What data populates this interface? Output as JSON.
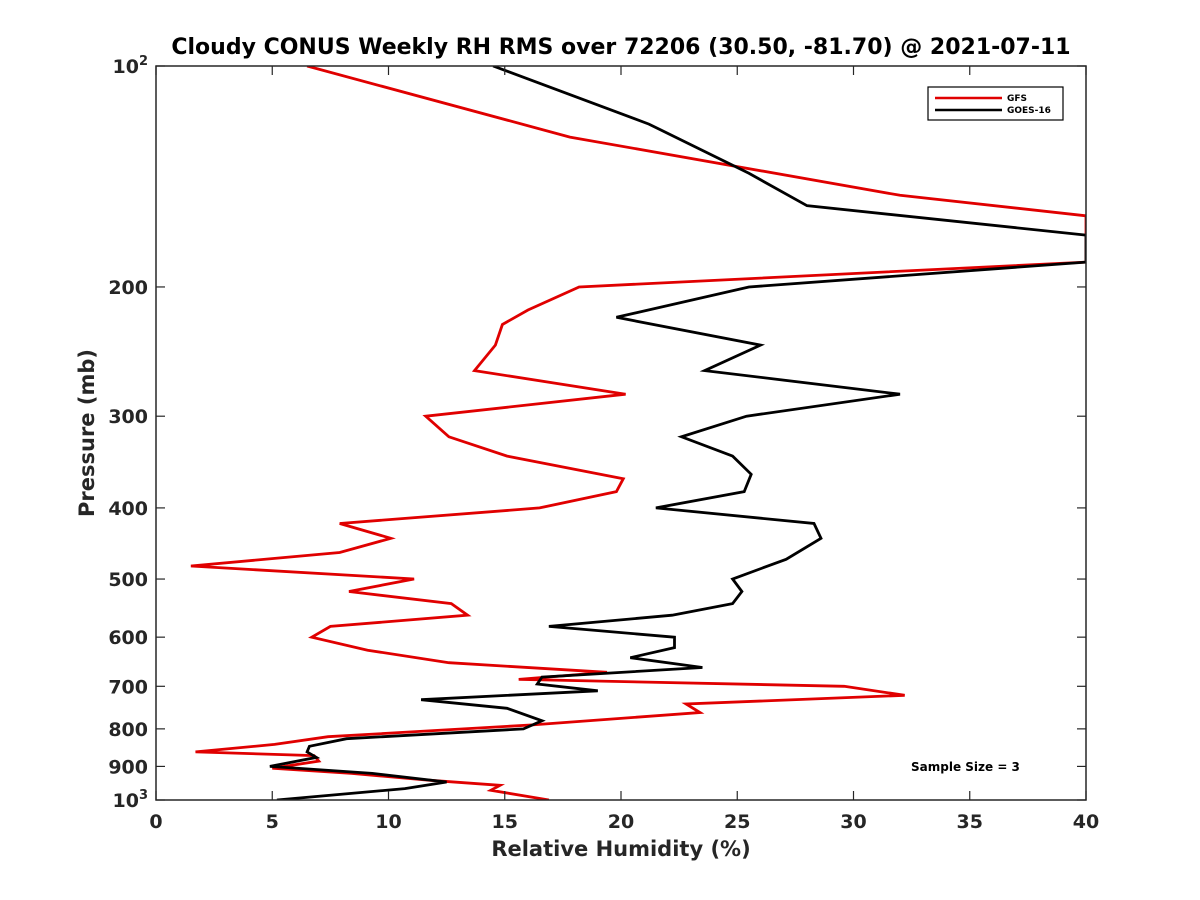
{
  "chart_data": {
    "type": "line",
    "title": "Cloudy CONUS Weekly RH RMS over 72206 (30.50, -81.70) @ 2021-07-11",
    "xlabel": "Relative Humidity (%)",
    "ylabel": "Pressure (mb)",
    "xlim": [
      0,
      40
    ],
    "ylim": [
      100,
      1000
    ],
    "yscale": "log",
    "y_reversed": true,
    "x_ticks": [
      0,
      5,
      10,
      15,
      20,
      25,
      30,
      35,
      40
    ],
    "x_tick_labels": [
      "0",
      "5",
      "10",
      "15",
      "20",
      "25",
      "30",
      "35",
      "40"
    ],
    "y_ticks": [
      {
        "value": 100,
        "base": "10",
        "exp": "2"
      },
      {
        "value": 200,
        "label": "200"
      },
      {
        "value": 300,
        "label": "300"
      },
      {
        "value": 400,
        "label": "400"
      },
      {
        "value": 500,
        "label": "500"
      },
      {
        "value": 600,
        "label": "600"
      },
      {
        "value": 700,
        "label": "700"
      },
      {
        "value": 800,
        "label": "800"
      },
      {
        "value": 900,
        "label": "900"
      },
      {
        "value": 1000,
        "base": "10",
        "exp": "3"
      }
    ],
    "legend_position": "top-right",
    "annotation": "Sample Size = 3",
    "series": [
      {
        "name": "GFS",
        "color": "#e00000",
        "points": [
          [
            6.5,
            100
          ],
          [
            17.8,
            125
          ],
          [
            32,
            150
          ],
          [
            40,
            160
          ],
          [
            40,
            185
          ],
          [
            18.2,
            200
          ],
          [
            16,
            215
          ],
          [
            14.9,
            225
          ],
          [
            14.6,
            240
          ],
          [
            13.7,
            260
          ],
          [
            20.2,
            280
          ],
          [
            11.6,
            300
          ],
          [
            12.6,
            320
          ],
          [
            15.1,
            340
          ],
          [
            20.1,
            365
          ],
          [
            19.8,
            380
          ],
          [
            16.5,
            400
          ],
          [
            7.9,
            420
          ],
          [
            10.1,
            440
          ],
          [
            7.9,
            460
          ],
          [
            1.5,
            480
          ],
          [
            11.1,
            500
          ],
          [
            8.3,
            520
          ],
          [
            12.7,
            540
          ],
          [
            13.4,
            560
          ],
          [
            7.5,
            580
          ],
          [
            6.7,
            600
          ],
          [
            9.1,
            625
          ],
          [
            12.6,
            650
          ],
          [
            19.4,
            670
          ],
          [
            15.6,
            685
          ],
          [
            29.6,
            700
          ],
          [
            32.2,
            720
          ],
          [
            22.8,
            740
          ],
          [
            23.4,
            760
          ],
          [
            16.2,
            790
          ],
          [
            7.4,
            820
          ],
          [
            5.1,
            840
          ],
          [
            1.7,
            860
          ],
          [
            6.8,
            870
          ],
          [
            7.0,
            885
          ],
          [
            5.0,
            905
          ],
          [
            8.4,
            920
          ],
          [
            11.8,
            940
          ],
          [
            14.8,
            955
          ],
          [
            14.4,
            970
          ],
          [
            16.9,
            1000
          ]
        ]
      },
      {
        "name": "GOES-16",
        "color": "#000000",
        "points": [
          [
            14.5,
            100
          ],
          [
            21.2,
            120
          ],
          [
            25.5,
            140
          ],
          [
            28,
            155
          ],
          [
            40,
            170
          ],
          [
            40,
            185
          ],
          [
            25.5,
            200
          ],
          [
            19.8,
            220
          ],
          [
            26,
            240
          ],
          [
            23.6,
            260
          ],
          [
            32,
            280
          ],
          [
            25.4,
            300
          ],
          [
            22.6,
            320
          ],
          [
            24.8,
            340
          ],
          [
            25.6,
            360
          ],
          [
            25.3,
            380
          ],
          [
            21.5,
            400
          ],
          [
            28.3,
            420
          ],
          [
            28.6,
            440
          ],
          [
            27.1,
            470
          ],
          [
            24.8,
            500
          ],
          [
            25.2,
            520
          ],
          [
            24.8,
            540
          ],
          [
            22.2,
            560
          ],
          [
            16.9,
            580
          ],
          [
            22.3,
            600
          ],
          [
            22.3,
            620
          ],
          [
            20.4,
            640
          ],
          [
            23.5,
            660
          ],
          [
            16.6,
            680
          ],
          [
            16.4,
            695
          ],
          [
            19,
            710
          ],
          [
            11.4,
            730
          ],
          [
            15.1,
            750
          ],
          [
            16.6,
            780
          ],
          [
            15.8,
            800
          ],
          [
            8.2,
            825
          ],
          [
            6.6,
            845
          ],
          [
            6.5,
            860
          ],
          [
            6.9,
            875
          ],
          [
            4.9,
            900
          ],
          [
            9.3,
            920
          ],
          [
            12.5,
            945
          ],
          [
            10.7,
            965
          ],
          [
            5.2,
            1000
          ]
        ]
      }
    ]
  }
}
